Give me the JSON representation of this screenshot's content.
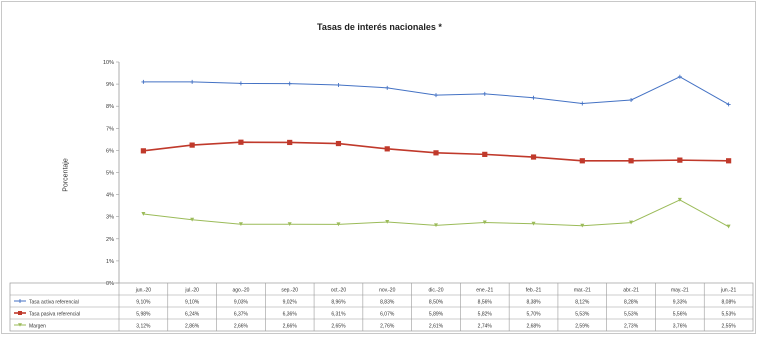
{
  "chart_data": {
    "type": "line",
    "title": "Tasas de interés nacionales *",
    "ylabel": "Porcentaje",
    "ylim": [
      0,
      10
    ],
    "yticks": [
      "0%",
      "1%",
      "2%",
      "3%",
      "4%",
      "5%",
      "6%",
      "7%",
      "8%",
      "9%",
      "10%"
    ],
    "categories": [
      "jun.-20",
      "jul.-20",
      "ago.-20",
      "sep.-20",
      "oct.-20",
      "nov.-20",
      "dic.-20",
      "ene.-21",
      "feb.-21",
      "mar.-21",
      "abr.-21",
      "may.-21",
      "jun.-21"
    ],
    "grid": false,
    "legend": "table-left",
    "series": [
      {
        "name": "Tasa activa referencial",
        "color": "#4472c4",
        "values": [
          9.1,
          9.1,
          9.03,
          9.02,
          8.96,
          8.83,
          8.5,
          8.56,
          8.38,
          8.12,
          8.28,
          9.33,
          8.08
        ],
        "labels": [
          "9,10%",
          "9,10%",
          "9,03%",
          "9,02%",
          "8,96%",
          "8,83%",
          "8,50%",
          "8,56%",
          "8,38%",
          "8,12%",
          "8,28%",
          "9,33%",
          "8,08%"
        ]
      },
      {
        "name": "Tasa pasiva referencial",
        "color": "#c0392b",
        "values": [
          5.98,
          6.24,
          6.37,
          6.36,
          6.31,
          6.07,
          5.89,
          5.82,
          5.7,
          5.53,
          5.53,
          5.56,
          5.53
        ],
        "labels": [
          "5,98%",
          "6,24%",
          "6,37%",
          "6,36%",
          "6,31%",
          "6,07%",
          "5,89%",
          "5,82%",
          "5,70%",
          "5,53%",
          "5,53%",
          "5,56%",
          "5,53%"
        ]
      },
      {
        "name": "Margen",
        "color": "#9bbb59",
        "values": [
          3.12,
          2.86,
          2.66,
          2.66,
          2.65,
          2.76,
          2.61,
          2.74,
          2.68,
          2.59,
          2.73,
          3.76,
          2.55
        ],
        "labels": [
          "3,12%",
          "2,86%",
          "2,66%",
          "2,66%",
          "2,65%",
          "2,76%",
          "2,61%",
          "2,74%",
          "2,68%",
          "2,59%",
          "2,73%",
          "3,76%",
          "2,55%"
        ]
      }
    ]
  }
}
